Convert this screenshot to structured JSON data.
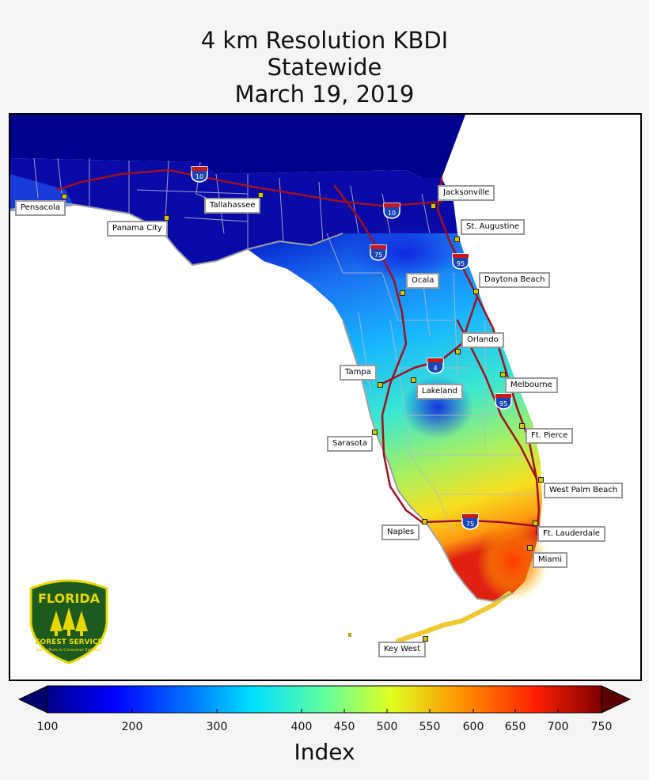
{
  "title": {
    "line1": "4 km Resolution KBDI",
    "line2": "Statewide",
    "line3": "March 19, 2019"
  },
  "cities": [
    {
      "name": "Pensacola"
    },
    {
      "name": "Panama City"
    },
    {
      "name": "Tallahassee"
    },
    {
      "name": "Jacksonville"
    },
    {
      "name": "St. Augustine"
    },
    {
      "name": "Ocala"
    },
    {
      "name": "Daytona Beach"
    },
    {
      "name": "Orlando"
    },
    {
      "name": "Tampa"
    },
    {
      "name": "Lakeland"
    },
    {
      "name": "Melbourne"
    },
    {
      "name": "Ft. Pierce"
    },
    {
      "name": "Sarasota"
    },
    {
      "name": "West Palm Beach"
    },
    {
      "name": "Naples"
    },
    {
      "name": "Ft. Lauderdale"
    },
    {
      "name": "Miami"
    },
    {
      "name": "Key West"
    }
  ],
  "highways": [
    {
      "number": "10"
    },
    {
      "number": "10"
    },
    {
      "number": "75"
    },
    {
      "number": "95"
    },
    {
      "number": "4"
    },
    {
      "number": "95"
    },
    {
      "number": "75"
    }
  ],
  "logo": {
    "line1": "FLORIDA",
    "line2": "FOREST SERVICE",
    "line3": "Agriculture & Consumer Services",
    "bg_color": "#1d5a1d",
    "accent_color": "#e8d800"
  },
  "colorbar": {
    "label": "Index",
    "ticks": [
      "100",
      "200",
      "300",
      "400",
      "450",
      "500",
      "550",
      "600",
      "650",
      "700",
      "750"
    ],
    "colormap": "jet"
  }
}
